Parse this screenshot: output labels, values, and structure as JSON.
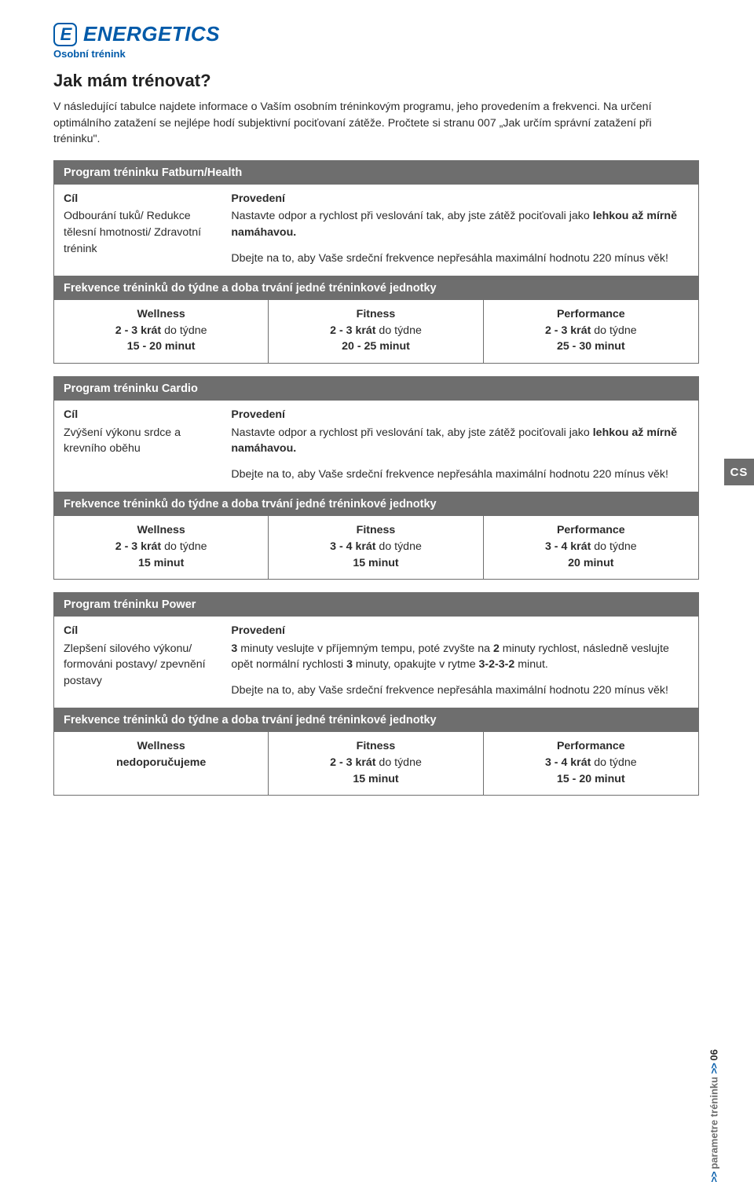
{
  "brand": {
    "icon_text": "E",
    "name": "ENERGETICS",
    "tagline": "Osobní trénink",
    "color": "#005aa9"
  },
  "page": {
    "title": "Jak mám trénovat?",
    "intro": "V následující tabulce najdete informace o Vaším osobním tréninkovým programu, jeho provedením a frekvenci. Na určení optimálního zatažení se nejlépe hodí subjektivní pociťovaní zátěže. Pročtete si stranu 007 „Jak určím správní zatažení při tréninku\"."
  },
  "colors": {
    "bar_bg": "#6e6e6e",
    "bar_text": "#ffffff",
    "border": "#6e6e6e",
    "text": "#2b2b2b"
  },
  "fonts": {
    "body_pt": 14.2,
    "title_pt": 22,
    "bar_pt": 14.5
  },
  "programs": [
    {
      "title": "Program tréninku Fatburn/Health",
      "cil_head": "Cíl",
      "provedeni_head": "Provedení",
      "cil": "Odbourání tuků/ Redukce tělesní hmotnosti/ Zdravotní trénink",
      "p1a": "Nastavte odpor a rychlost při veslování tak, aby jste zátěž pociťovali jako ",
      "p1b": "lehkou až mírně namáhavou.",
      "p2": "Dbejte na to, aby Vaše srdeční frekvence nepřesáhla maximální hodnotu 220 mínus věk!",
      "freq_title": "Frekvence tréninků do týdne a doba trvání jedné tréninkové jednotky",
      "cols": [
        {
          "h": "Wellness",
          "l1a": "2 - 3 krát",
          "l1b": " do týdne",
          "l2": "15 - 20 minut"
        },
        {
          "h": "Fitness",
          "l1a": "2 - 3 krát",
          "l1b": " do týdne",
          "l2": "20 - 25 minut"
        },
        {
          "h": "Performance",
          "l1a": "2 - 3 krát",
          "l1b": " do týdne",
          "l2": "25 - 30 minut"
        }
      ]
    },
    {
      "title": "Program tréninku Cardio",
      "cil_head": "Cíl",
      "provedeni_head": "Provedení",
      "cil": "Zvýšení výkonu srdce a krevního oběhu",
      "p1a": "Nastavte odpor a rychlost při veslování tak, aby jste zátěž pociťovali jako ",
      "p1b": "lehkou až mírně namáhavou.",
      "p2": "Dbejte na to, aby Vaše srdeční frekvence nepřesáhla maximální hodnotu 220 mínus věk!",
      "freq_title": "Frekvence tréninků do týdne a doba trvání jedné tréninkové jednotky",
      "cols": [
        {
          "h": "Wellness",
          "l1a": "2 - 3 krát",
          "l1b": " do týdne",
          "l2": "15 minut"
        },
        {
          "h": "Fitness",
          "l1a": "3 - 4 krát",
          "l1b": " do týdne",
          "l2": "15 minut"
        },
        {
          "h": "Performance",
          "l1a": "3 - 4 krát",
          "l1b": " do týdne",
          "l2": "20 minut"
        }
      ]
    },
    {
      "title": "Program tréninku Power",
      "cil_head": "Cíl",
      "provedeni_head": "Provedení",
      "cil": "Zlepšení silového výkonu/ formováni postavy/ zpevnění postavy",
      "p1_full": "3 minuty veslujte v příjemným tempu, poté zvyšte na 2 minuty rychlost, následně veslujte opět normální rychlosti 3 minuty, opakujte v rytme 3-2-3-2 minut.",
      "p2": "Dbejte na to, aby Vaše srdeční frekvence nepřesáhla maximální hodnotu 220 mínus věk!",
      "freq_title": "Frekvence tréninků do týdne a doba trvání jedné tréninkové jednotky",
      "cols": [
        {
          "h": "Wellness",
          "single": "nedoporučujeme"
        },
        {
          "h": "Fitness",
          "l1a": "2 - 3 krát",
          "l1b": " do týdne",
          "l2": "15 minut"
        },
        {
          "h": "Performance",
          "l1a": "3 - 4 krát",
          "l1b": " do týdne",
          "l2": "15 - 20 minut"
        }
      ]
    }
  ],
  "side": {
    "tab": "CS",
    "label": "parametre tréninku",
    "num": "06",
    "chev": ">>"
  }
}
